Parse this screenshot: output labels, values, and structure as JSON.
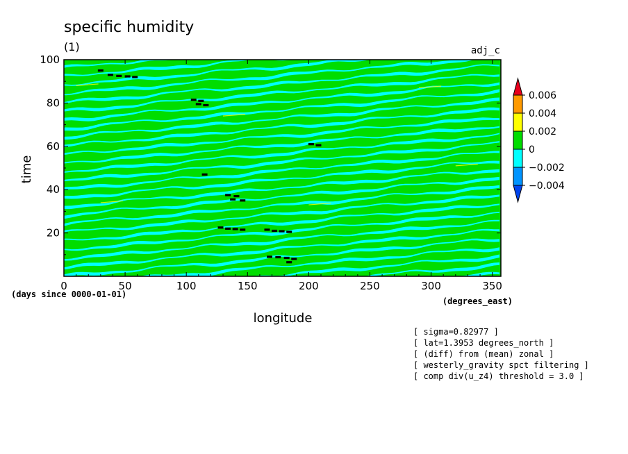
{
  "chart_data": {
    "type": "heatmap",
    "title": "specific humidity",
    "subtitle": "(1)",
    "corner_label": "adj_c",
    "xlabel": "longitude",
    "ylabel": "time",
    "x_units": "(degrees_east)",
    "y_units": "(days since 0000-01-01)",
    "xlim": [
      0,
      357
    ],
    "ylim": [
      0,
      100
    ],
    "x_ticks": [
      0,
      50,
      100,
      150,
      200,
      250,
      300,
      350
    ],
    "y_ticks": [
      20,
      40,
      60,
      80,
      100
    ],
    "grid": false,
    "colorbar": {
      "placement": "right",
      "levels": [
        "0.006",
        "0.004",
        "0.002",
        "0",
        "−0.002",
        "−0.004"
      ],
      "colors": [
        "#e8001c",
        "#ff9a00",
        "#ffff00",
        "#00dd00",
        "#00ffff",
        "#0094ff",
        "#0044ee"
      ]
    },
    "field": {
      "dominant_bands": [
        "0",
        "−0.002"
      ],
      "stripe_orientation": "diagonal, rising to the left"
    },
    "markers": [
      {
        "x": 30,
        "y": 95
      },
      {
        "x": 38,
        "y": 93
      },
      {
        "x": 45,
        "y": 92.5
      },
      {
        "x": 52,
        "y": 92.3
      },
      {
        "x": 58,
        "y": 92
      },
      {
        "x": 106,
        "y": 81.5
      },
      {
        "x": 112,
        "y": 81
      },
      {
        "x": 110,
        "y": 79.5
      },
      {
        "x": 116,
        "y": 79
      },
      {
        "x": 202,
        "y": 61
      },
      {
        "x": 208,
        "y": 60.5
      },
      {
        "x": 115,
        "y": 47
      },
      {
        "x": 134,
        "y": 37.5
      },
      {
        "x": 141,
        "y": 37
      },
      {
        "x": 138,
        "y": 35.5
      },
      {
        "x": 146,
        "y": 35
      },
      {
        "x": 128,
        "y": 22.5
      },
      {
        "x": 134,
        "y": 22
      },
      {
        "x": 140,
        "y": 21.8
      },
      {
        "x": 146,
        "y": 21.5
      },
      {
        "x": 166,
        "y": 21.5
      },
      {
        "x": 172,
        "y": 21
      },
      {
        "x": 178,
        "y": 20.8
      },
      {
        "x": 184,
        "y": 20.5
      },
      {
        "x": 168,
        "y": 9
      },
      {
        "x": 175,
        "y": 8.8
      },
      {
        "x": 182,
        "y": 8.5
      },
      {
        "x": 188,
        "y": 8
      },
      {
        "x": 184,
        "y": 6.5
      }
    ]
  },
  "annotations": [
    "[ sigma=0.82977 ]",
    "[ lat=1.3953 degrees_north ]",
    "[ (diff) from (mean) zonal ]",
    "[ westerly_gravity spct filtering ]",
    "[ comp div(u_z4) threshold = 3.0 ]"
  ]
}
